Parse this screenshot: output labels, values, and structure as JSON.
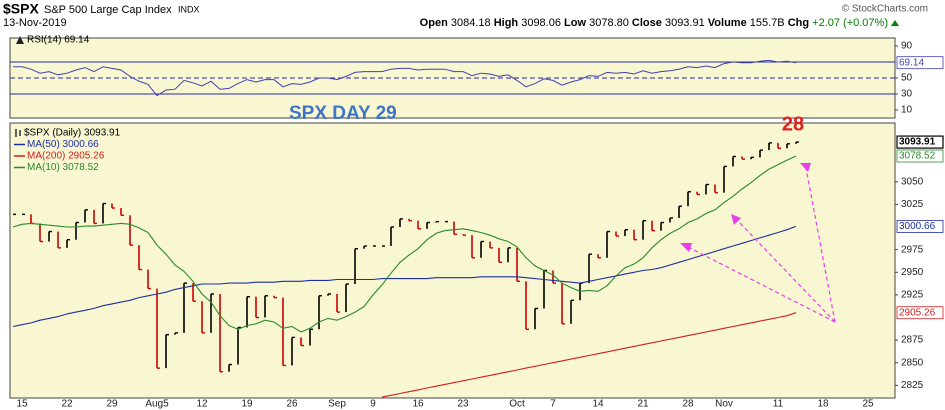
{
  "header": {
    "symbol": "$SPX",
    "name": "S&P 500 Large Cap Index",
    "exchange": "INDX",
    "date": "13-Nov-2019",
    "credit": "© StockCharts.com",
    "quote": [
      {
        "label": "Open",
        "value": "3084.18"
      },
      {
        "label": "High",
        "value": "3098.06"
      },
      {
        "label": "Low",
        "value": "3078.80"
      },
      {
        "label": "Close",
        "value": "3093.91"
      },
      {
        "label": "Volume",
        "value": "155.7B"
      },
      {
        "label": "Chg",
        "value": "+2.07 (+0.07%)"
      }
    ]
  },
  "chart_data": {
    "type": "ohlc",
    "categories": [
      null,
      "15",
      null,
      null,
      null,
      null,
      "22",
      null,
      null,
      null,
      null,
      "29",
      null,
      null,
      null,
      null,
      "Aug5",
      null,
      null,
      null,
      null,
      "12",
      null,
      null,
      null,
      null,
      "19",
      null,
      null,
      null,
      null,
      "26",
      null,
      null,
      null,
      null,
      "Sep",
      null,
      null,
      null,
      "9",
      null,
      null,
      null,
      null,
      "16",
      null,
      null,
      null,
      null,
      "23",
      null,
      null,
      null,
      null,
      null,
      "Oct",
      null,
      null,
      null,
      "7",
      null,
      null,
      null,
      null,
      "14",
      null,
      null,
      null,
      null,
      "21",
      null,
      null,
      null,
      null,
      "28",
      null,
      null,
      null,
      "Nov",
      null,
      null,
      null,
      null,
      null,
      "11",
      null,
      null,
      null,
      null,
      "18",
      null,
      null,
      null,
      null,
      "25",
      null,
      null
    ],
    "ylim": [
      2811,
      3115
    ],
    "yticks": [
      2825,
      2850,
      2875,
      2925,
      2950,
      2975,
      3025,
      3050
    ],
    "annotations": [
      "SPX DAY 29",
      "28"
    ],
    "series": [
      {
        "name": "$SPX (Daily) 3093.91",
        "color": "#000000",
        "down_color": "#cc0000",
        "role": "price",
        "values": [
          3014,
          3014,
          3004,
          2984,
          2995,
          2977,
          2986,
          3005,
          3019,
          3004,
          3026,
          3021,
          3013,
          2980,
          2953,
          2932,
          2844,
          2881,
          2883,
          2938,
          2918,
          2883,
          2926,
          2840,
          2848,
          2889,
          2923,
          2900,
          2924,
          2922,
          2847,
          2878,
          2869,
          2887,
          2924,
          2926,
          2906,
          2937,
          2976,
          2979,
          2979,
          2979,
          3000,
          3009,
          3007,
          2998,
          3005,
          3006,
          3006,
          2992,
          2991,
          2966,
          2984,
          2977,
          2961,
          2977,
          2940,
          2887,
          2910,
          2952,
          2938,
          2893,
          2919,
          2938,
          2970,
          2966,
          2995,
          2990,
          2997,
          2986,
          3007,
          2996,
          3005,
          3010,
          3023,
          3039,
          3036,
          3047,
          3038,
          3067,
          3078,
          3075,
          3077,
          3085,
          3093,
          3087,
          3092,
          3093.91,
          null,
          null,
          null,
          null,
          null,
          null,
          null,
          null,
          null,
          null
        ]
      },
      {
        "name": "MA(50) 3000.66",
        "color": "#1f2f9f",
        "role": "line",
        "values": [
          2890,
          2892,
          2894,
          2897,
          2899,
          2901,
          2904,
          2906,
          2908,
          2910,
          2913,
          2915,
          2917,
          2919,
          2922,
          2924,
          2926,
          2928,
          2931,
          2933,
          2935,
          2937,
          2937,
          2937,
          2938,
          2938,
          2938,
          2939,
          2939,
          2939,
          2940,
          2940,
          2940,
          2941,
          2941,
          2941,
          2942,
          2942,
          2942,
          2942,
          2942,
          2943,
          2943,
          2943,
          2943,
          2943,
          2943,
          2944,
          2944,
          2944,
          2944,
          2944,
          2945,
          2945,
          2945,
          2945,
          2945,
          2944,
          2943,
          2942,
          2941,
          2940,
          2939,
          2938,
          2940,
          2942,
          2944,
          2946,
          2948,
          2950,
          2952,
          2953,
          2955,
          2958,
          2961,
          2964,
          2967,
          2970,
          2973,
          2976,
          2979,
          2982,
          2985,
          2988,
          2991,
          2994,
          2997,
          3000.66,
          null,
          null,
          null,
          null,
          null,
          null,
          null,
          null,
          null,
          null
        ]
      },
      {
        "name": "MA(200) 2905.26",
        "color": "#d02020",
        "role": "line",
        "values": [
          null,
          null,
          null,
          null,
          null,
          null,
          null,
          null,
          null,
          null,
          null,
          null,
          null,
          null,
          null,
          null,
          null,
          null,
          null,
          null,
          null,
          null,
          null,
          null,
          null,
          null,
          null,
          null,
          null,
          null,
          null,
          null,
          null,
          null,
          null,
          null,
          null,
          null,
          null,
          null,
          null,
          2812,
          2814,
          2816,
          2818,
          2820,
          2822,
          2824,
          2826,
          2828,
          2830,
          2832,
          2834,
          2836,
          2838,
          2840,
          2842,
          2844,
          2846,
          2848,
          2850,
          2852,
          2854,
          2856,
          2858,
          2860,
          2862,
          2864,
          2866,
          2868,
          2870,
          2872,
          2874,
          2876,
          2878,
          2880,
          2882,
          2884,
          2886,
          2888,
          2890,
          2892,
          2894,
          2896,
          2898,
          2900,
          2902,
          2905.26,
          null,
          null,
          null,
          null,
          null,
          null,
          null,
          null,
          null,
          null
        ]
      },
      {
        "name": "MA(10) 3078.52",
        "color": "#2a8a2a",
        "role": "line",
        "values": [
          3000,
          3003,
          3004,
          3003,
          3002,
          3001,
          3000,
          3000,
          3001,
          3001,
          3002,
          3003,
          3004,
          3003,
          2999,
          2994,
          2980,
          2970,
          2958,
          2951,
          2940,
          2926,
          2917,
          2902,
          2891,
          2887,
          2891,
          2893,
          2897,
          2895,
          2888,
          2890,
          2884,
          2888,
          2895,
          2899,
          2897,
          2901,
          2906,
          2912,
          2925,
          2936,
          2949,
          2961,
          2969,
          2976,
          2986,
          2993,
          2996,
          2997,
          2998,
          2996,
          2994,
          2991,
          2987,
          2984,
          2978,
          2966,
          2957,
          2952,
          2947,
          2938,
          2933,
          2929,
          2930,
          2929,
          2935,
          2946,
          2955,
          2959,
          2966,
          2977,
          2986,
          2993,
          2998,
          3005,
          3009,
          3015,
          3019,
          3027,
          3034,
          3042,
          3049,
          3057,
          3064,
          3069,
          3074,
          3078.52,
          null,
          null,
          null,
          null,
          null,
          null,
          null,
          null,
          null,
          null
        ]
      }
    ],
    "rsi": {
      "ylim": [
        0,
        100
      ],
      "yticks": [
        10,
        30,
        50,
        90
      ],
      "levels": [
        30,
        50,
        70
      ],
      "series": [
        {
          "name": "RSI(14) 69.14",
          "color": "#4040b0",
          "values": [
            64,
            64,
            61,
            56,
            58,
            54,
            56,
            60,
            63,
            58,
            64,
            62,
            60,
            52,
            46,
            42,
            28,
            35,
            36,
            47,
            44,
            40,
            46,
            36,
            37,
            43,
            48,
            45,
            48,
            48,
            39,
            43,
            42,
            45,
            50,
            50,
            48,
            52,
            57,
            58,
            58,
            58,
            61,
            62,
            62,
            60,
            61,
            61,
            61,
            58,
            58,
            53,
            56,
            55,
            52,
            54,
            47,
            39,
            43,
            49,
            47,
            41,
            45,
            48,
            53,
            52,
            57,
            56,
            57,
            55,
            59,
            56,
            58,
            59,
            61,
            64,
            63,
            65,
            63,
            68,
            70,
            69,
            69,
            71,
            72,
            70,
            71,
            69.14,
            null,
            null,
            null,
            null,
            null,
            null,
            null,
            null,
            null,
            null
          ]
        }
      ]
    }
  }
}
